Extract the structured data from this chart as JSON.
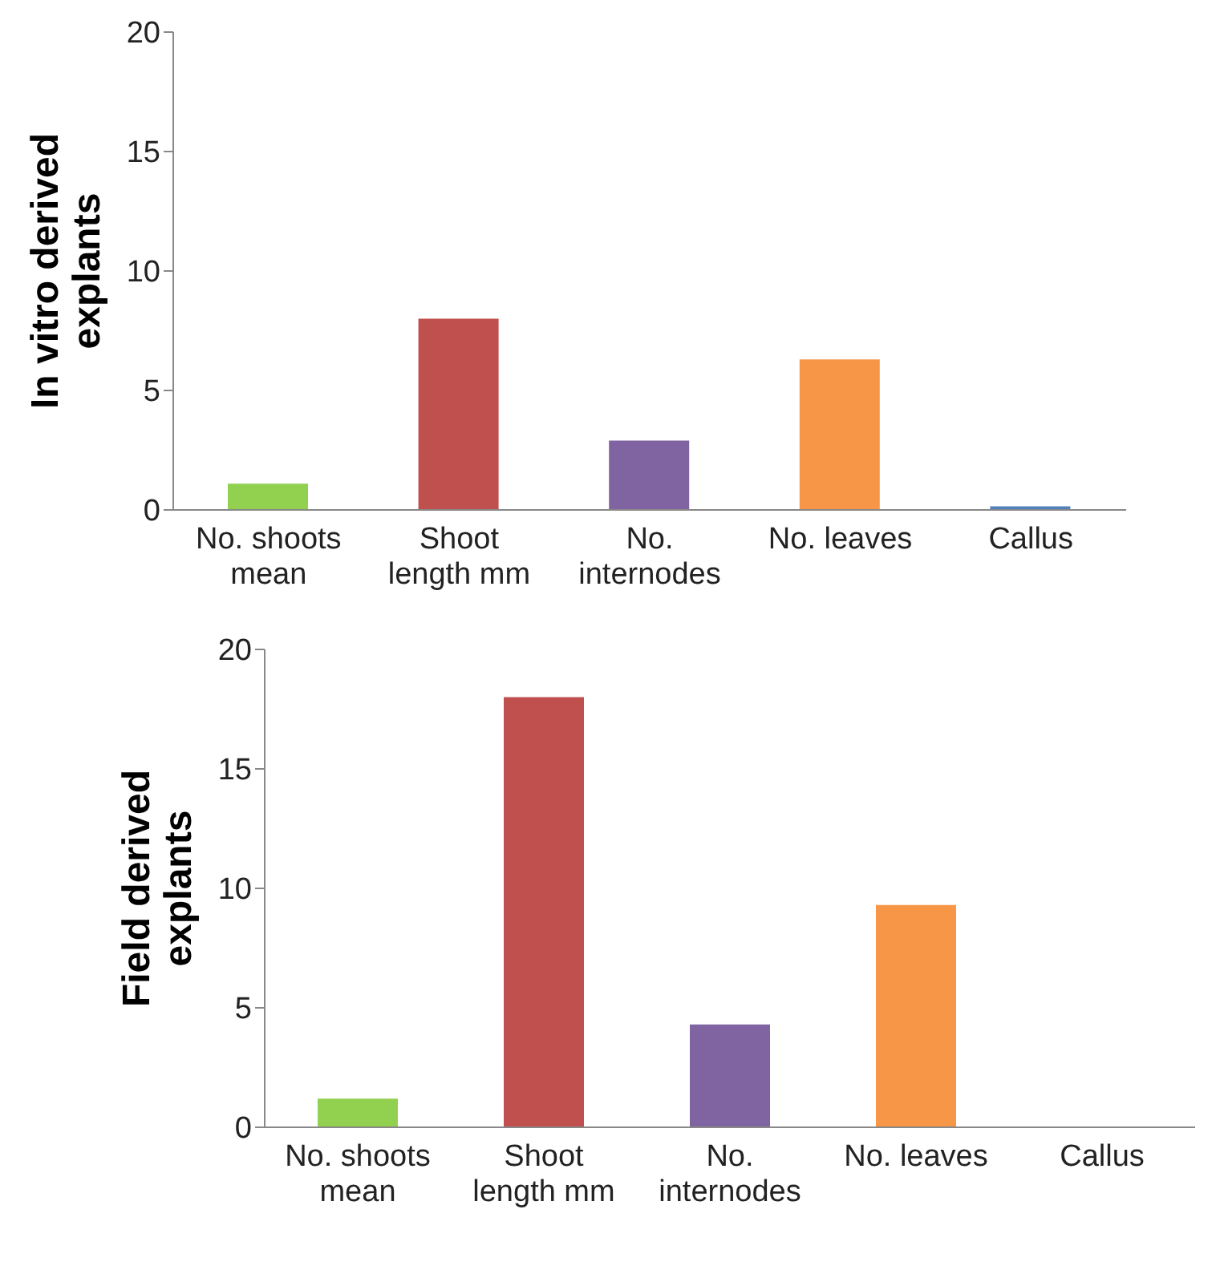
{
  "chart_data": [
    {
      "type": "bar",
      "ylabel": "In vitro derived explants",
      "categories": [
        "No. shoots mean",
        "Shoot length mm",
        "No. internodes",
        "No. leaves",
        "Callus"
      ],
      "values": [
        1.1,
        8.0,
        2.9,
        6.3,
        0.15
      ],
      "colors": [
        "#92d050",
        "#c0504d",
        "#8064a2",
        "#f79646",
        "#4f81bd"
      ],
      "ylim": [
        0,
        20
      ],
      "yticks": [
        0,
        5,
        10,
        15,
        20
      ]
    },
    {
      "type": "bar",
      "ylabel": "Field derived explants",
      "categories": [
        "No. shoots mean",
        "Shoot length mm",
        "No. internodes",
        "No. leaves",
        "Callus"
      ],
      "values": [
        1.2,
        18.0,
        4.3,
        9.3,
        0
      ],
      "colors": [
        "#92d050",
        "#c0504d",
        "#8064a2",
        "#f79646",
        "#4f81bd"
      ],
      "ylim": [
        0,
        20
      ],
      "yticks": [
        0,
        5,
        10,
        15,
        20
      ]
    }
  ]
}
